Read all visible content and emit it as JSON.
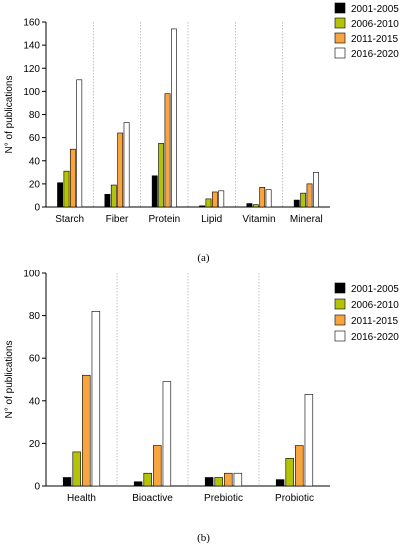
{
  "legend_colors": [
    "#000000",
    "#b5c20a",
    "#f7a441",
    "#ffffff"
  ],
  "chart_data": [
    {
      "type": "bar",
      "label": "(a)",
      "ylabel": "N° of publications",
      "ylim": [
        0,
        160
      ],
      "yticks": [
        0,
        20,
        40,
        60,
        80,
        100,
        120,
        140,
        160
      ],
      "legend_position": "top-right",
      "categories": [
        "Starch",
        "Fiber",
        "Protein",
        "Lipid",
        "Vitamin",
        "Mineral"
      ],
      "series": [
        {
          "name": "2001-2005",
          "values": [
            21,
            11,
            27,
            1,
            3,
            6
          ]
        },
        {
          "name": "2006-2010",
          "values": [
            31,
            19,
            55,
            7,
            2,
            12
          ]
        },
        {
          "name": "2011-2015",
          "values": [
            50,
            64,
            98,
            13,
            17,
            20
          ]
        },
        {
          "name": "2016-2020",
          "values": [
            110,
            73,
            154,
            14,
            15,
            30
          ]
        }
      ]
    },
    {
      "type": "bar",
      "label": "(b)",
      "ylabel": "N° of publications",
      "ylim": [
        0,
        100
      ],
      "yticks": [
        0,
        20,
        40,
        60,
        80,
        100
      ],
      "legend_position": "top-right",
      "categories": [
        "Health",
        "Bioactive",
        "Prebiotic",
        "Probiotic"
      ],
      "series": [
        {
          "name": "2001-2005",
          "values": [
            4,
            2,
            4,
            3
          ]
        },
        {
          "name": "2006-2010",
          "values": [
            16,
            6,
            4,
            13
          ]
        },
        {
          "name": "2011-2015",
          "values": [
            52,
            19,
            6,
            19
          ]
        },
        {
          "name": "2016-2020",
          "values": [
            82,
            49,
            6,
            43
          ]
        }
      ]
    }
  ]
}
